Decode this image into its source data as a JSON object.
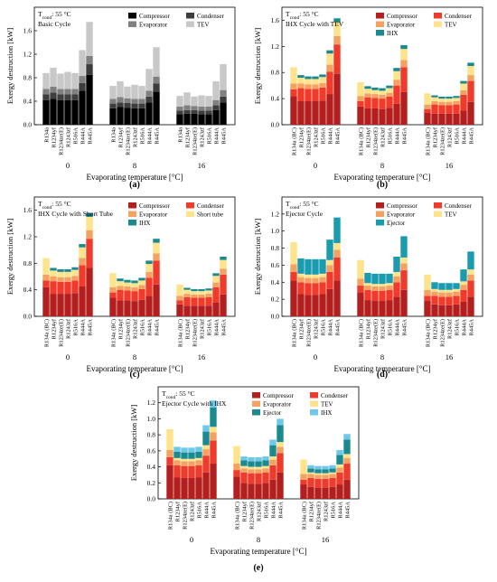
{
  "colors": {
    "compressor_basic": "#000000",
    "condenser_basic": "#3d3d3d",
    "evaporator_basic": "#808080",
    "tev_basic": "#c8c8c8",
    "compressor": "#b31f1f",
    "condenser": "#ef3b2c",
    "evaporator": "#f4a261",
    "expansion": "#fde38c",
    "ihx": "#1b8a8f",
    "ejector": "#1a9cb0",
    "ihx_light": "#6fc8ea"
  },
  "chart_data": [
    {
      "id": "a",
      "type": "bar",
      "stacked": true,
      "panel_label": "(a)",
      "title_main": "T",
      "title_sub": "cond",
      "title_rest": ": 55 °C",
      "subtitle": "Basic Cycle",
      "ylabel": "Exergy destruction [kW]",
      "xlabel": "Evaporating temperature [°C]",
      "ylim": [
        0,
        2.0
      ],
      "yticks": [
        "0.0",
        "0.4",
        "0.8",
        "1.2",
        "1.6"
      ],
      "groups": [
        "0",
        "8",
        "16"
      ],
      "categories": [
        "R134a",
        "R1234yf",
        "R1234ze(E)",
        "R1243zf",
        "R516A",
        "R444A",
        "R445A"
      ],
      "legend_cols": 2,
      "series": [
        {
          "name": "Compressor",
          "color_key": "compressor_basic",
          "values": [
            [
              0.42,
              0.44,
              0.42,
              0.42,
              0.42,
              0.58,
              0.85
            ],
            [
              0.28,
              0.3,
              0.29,
              0.28,
              0.28,
              0.38,
              0.56
            ],
            [
              0.18,
              0.19,
              0.19,
              0.18,
              0.18,
              0.25,
              0.38
            ]
          ]
        },
        {
          "name": "Condenser",
          "color_key": "condenser_basic",
          "values": [
            [
              0.1,
              0.11,
              0.1,
              0.1,
              0.1,
              0.13,
              0.18
            ],
            [
              0.08,
              0.08,
              0.08,
              0.08,
              0.08,
              0.1,
              0.14
            ],
            [
              0.06,
              0.06,
              0.06,
              0.06,
              0.06,
              0.08,
              0.1
            ]
          ]
        },
        {
          "name": "Evaporator",
          "color_key": "evaporator_basic",
          "values": [
            [
              0.09,
              0.1,
              0.09,
              0.09,
              0.09,
              0.12,
              0.14
            ],
            [
              0.08,
              0.09,
              0.08,
              0.08,
              0.08,
              0.1,
              0.12
            ],
            [
              0.07,
              0.08,
              0.07,
              0.07,
              0.07,
              0.09,
              0.11
            ]
          ]
        },
        {
          "name": "TEV",
          "color_key": "tev_basic",
          "values": [
            [
              0.27,
              0.32,
              0.26,
              0.29,
              0.27,
              0.44,
              0.58
            ],
            [
              0.22,
              0.27,
              0.2,
              0.24,
              0.22,
              0.37,
              0.5
            ],
            [
              0.18,
              0.22,
              0.16,
              0.19,
              0.18,
              0.32,
              0.44
            ]
          ]
        }
      ]
    },
    {
      "id": "b",
      "type": "bar",
      "stacked": true,
      "panel_label": "(b)",
      "title_main": "T",
      "title_sub": "cond",
      "title_rest": ": 55 °C",
      "subtitle": "IHX Cycle with TEV",
      "ylabel": "Exergy destruction [kW]",
      "xlabel": "Evaporating temperature [°C]",
      "ylim": [
        0,
        1.8
      ],
      "yticks": [
        "0.0",
        "0.4",
        "0.8",
        "1.2",
        "1.6"
      ],
      "groups": [
        "0",
        "8",
        "16"
      ],
      "categories": [
        "R134a (BC)",
        "R1234yf",
        "R1234ze(E)",
        "R1243zf",
        "R516A",
        "R444A",
        "R445A"
      ],
      "legend_cols": 2,
      "series": [
        {
          "name": "Compressor",
          "color_key": "compressor",
          "values": [
            [
              0.44,
              0.36,
              0.36,
              0.36,
              0.37,
              0.47,
              0.78
            ],
            [
              0.28,
              0.25,
              0.25,
              0.24,
              0.26,
              0.32,
              0.5
            ],
            [
              0.18,
              0.17,
              0.17,
              0.17,
              0.17,
              0.22,
              0.35
            ]
          ]
        },
        {
          "name": "Condenser",
          "color_key": "condenser",
          "values": [
            [
              0.1,
              0.2,
              0.19,
              0.19,
              0.2,
              0.34,
              0.45
            ],
            [
              0.08,
              0.17,
              0.16,
              0.16,
              0.17,
              0.28,
              0.38
            ],
            [
              0.06,
              0.14,
              0.13,
              0.13,
              0.14,
              0.24,
              0.32
            ]
          ]
        },
        {
          "name": "Evaporator",
          "color_key": "evaporator",
          "values": [
            [
              0.09,
              0.07,
              0.07,
              0.07,
              0.07,
              0.11,
              0.13
            ],
            [
              0.08,
              0.06,
              0.06,
              0.06,
              0.06,
              0.09,
              0.11
            ],
            [
              0.07,
              0.05,
              0.05,
              0.05,
              0.05,
              0.07,
              0.09
            ]
          ]
        },
        {
          "name": "TEV",
          "color_key": "expansion",
          "values": [
            [
              0.25,
              0.09,
              0.08,
              0.08,
              0.09,
              0.17,
              0.21
            ],
            [
              0.21,
              0.07,
              0.06,
              0.06,
              0.07,
              0.13,
              0.17
            ],
            [
              0.17,
              0.06,
              0.05,
              0.05,
              0.05,
              0.1,
              0.14
            ]
          ]
        },
        {
          "name": "IHX",
          "color_key": "ihx",
          "values": [
            [
              0.0,
              0.04,
              0.04,
              0.04,
              0.04,
              0.05,
              0.06
            ],
            [
              0.0,
              0.04,
              0.04,
              0.04,
              0.04,
              0.05,
              0.06
            ],
            [
              0.0,
              0.03,
              0.03,
              0.03,
              0.03,
              0.04,
              0.05
            ]
          ]
        }
      ]
    },
    {
      "id": "c",
      "type": "bar",
      "stacked": true,
      "panel_label": "(c)",
      "title_main": "T",
      "title_sub": "cond",
      "title_rest": ": 55 °C",
      "subtitle": "IHX Cycle with Short Tube",
      "ylabel": "Exergy destruction [kW]",
      "xlabel": "Evaporating temperature [°C]",
      "ylim": [
        0,
        1.8
      ],
      "yticks": [
        "0.0",
        "0.4",
        "0.8",
        "1.2",
        "1.6"
      ],
      "groups": [
        "0",
        "8",
        "16"
      ],
      "categories": [
        "R134a (BC)",
        "R1234yf",
        "R1234ze(E)",
        "R1243zf",
        "R516A",
        "R444A",
        "R445A"
      ],
      "legend_cols": 2,
      "series": [
        {
          "name": "Compressor",
          "color_key": "compressor",
          "values": [
            [
              0.44,
              0.34,
              0.34,
              0.34,
              0.35,
              0.45,
              0.73
            ],
            [
              0.28,
              0.24,
              0.24,
              0.23,
              0.25,
              0.31,
              0.48
            ],
            [
              0.18,
              0.16,
              0.16,
              0.16,
              0.16,
              0.21,
              0.33
            ]
          ]
        },
        {
          "name": "Condenser",
          "color_key": "condenser",
          "values": [
            [
              0.1,
              0.19,
              0.18,
              0.18,
              0.19,
              0.32,
              0.44
            ],
            [
              0.08,
              0.16,
              0.15,
              0.15,
              0.16,
              0.27,
              0.36
            ],
            [
              0.06,
              0.13,
              0.12,
              0.12,
              0.13,
              0.23,
              0.3
            ]
          ]
        },
        {
          "name": "Evaporator",
          "color_key": "evaporator",
          "values": [
            [
              0.09,
              0.07,
              0.07,
              0.07,
              0.07,
              0.11,
              0.13
            ],
            [
              0.08,
              0.06,
              0.06,
              0.06,
              0.06,
              0.09,
              0.11
            ],
            [
              0.07,
              0.05,
              0.05,
              0.05,
              0.05,
              0.07,
              0.09
            ]
          ]
        },
        {
          "name": "Short tube",
          "color_key": "expansion",
          "values": [
            [
              0.25,
              0.09,
              0.08,
              0.08,
              0.09,
              0.16,
              0.2
            ],
            [
              0.21,
              0.07,
              0.06,
              0.06,
              0.07,
              0.12,
              0.16
            ],
            [
              0.17,
              0.06,
              0.05,
              0.05,
              0.05,
              0.1,
              0.13
            ]
          ]
        },
        {
          "name": "IHX",
          "color_key": "ihx",
          "values": [
            [
              0.0,
              0.04,
              0.04,
              0.04,
              0.04,
              0.05,
              0.06
            ],
            [
              0.0,
              0.04,
              0.04,
              0.04,
              0.04,
              0.05,
              0.06
            ],
            [
              0.0,
              0.03,
              0.03,
              0.03,
              0.03,
              0.04,
              0.05
            ]
          ]
        }
      ]
    },
    {
      "id": "d",
      "type": "bar",
      "stacked": true,
      "panel_label": "(d)",
      "title_main": "T",
      "title_sub": "cond",
      "title_rest": ": 55 °C",
      "subtitle": "Ejector Cycle",
      "ylabel": "Exergy destruction [kW]",
      "xlabel": "Evaporating temperature [°C]",
      "ylim": [
        0,
        1.4
      ],
      "yticks": [
        "0.0",
        "0.2",
        "0.4",
        "0.6",
        "0.8",
        "1.0",
        "1.2"
      ],
      "groups": [
        "0",
        "8",
        "16"
      ],
      "categories": [
        "R134a (BC)",
        "R1234yf",
        "R1234ze(E)",
        "R1243zf",
        "R516A",
        "R444A",
        "R445A"
      ],
      "legend_cols": 2,
      "series": [
        {
          "name": "Compressor",
          "color_key": "compressor",
          "values": [
            [
              0.42,
              0.26,
              0.25,
              0.25,
              0.26,
              0.32,
              0.42
            ],
            [
              0.28,
              0.19,
              0.18,
              0.18,
              0.19,
              0.23,
              0.31
            ],
            [
              0.18,
              0.14,
              0.13,
              0.13,
              0.14,
              0.17,
              0.23
            ]
          ]
        },
        {
          "name": "Condenser",
          "color_key": "condenser",
          "values": [
            [
              0.1,
              0.14,
              0.14,
              0.14,
              0.14,
              0.2,
              0.27
            ],
            [
              0.08,
              0.12,
              0.12,
              0.12,
              0.12,
              0.17,
              0.23
            ],
            [
              0.06,
              0.1,
              0.1,
              0.1,
              0.1,
              0.14,
              0.19
            ]
          ]
        },
        {
          "name": "Evaporator",
          "color_key": "evaporator",
          "values": [
            [
              0.09,
              0.06,
              0.06,
              0.06,
              0.06,
              0.08,
              0.09
            ],
            [
              0.08,
              0.05,
              0.05,
              0.05,
              0.05,
              0.07,
              0.08
            ],
            [
              0.07,
              0.05,
              0.05,
              0.05,
              0.05,
              0.06,
              0.07
            ]
          ]
        },
        {
          "name": "TEV",
          "color_key": "expansion",
          "values": [
            [
              0.26,
              0.04,
              0.04,
              0.04,
              0.04,
              0.06,
              0.08
            ],
            [
              0.22,
              0.03,
              0.03,
              0.03,
              0.03,
              0.05,
              0.07
            ],
            [
              0.18,
              0.03,
              0.03,
              0.03,
              0.03,
              0.04,
              0.06
            ]
          ]
        },
        {
          "name": "Ejector",
          "color_key": "ejector",
          "values": [
            [
              0.0,
              0.18,
              0.18,
              0.18,
              0.17,
              0.24,
              0.3
            ],
            [
              0.0,
              0.12,
              0.12,
              0.12,
              0.11,
              0.18,
              0.25
            ],
            [
              0.0,
              0.08,
              0.08,
              0.08,
              0.07,
              0.14,
              0.21
            ]
          ]
        }
      ]
    },
    {
      "id": "e",
      "type": "bar",
      "stacked": true,
      "panel_label": "(e)",
      "title_main": "T",
      "title_sub": "cond",
      "title_rest": ": 55 °C",
      "subtitle": "Ejector Cycle with IHX",
      "ylabel": "Exergy destruction [kW]",
      "xlabel": "Evaporating temperature [°C]",
      "ylim": [
        0,
        1.4
      ],
      "yticks": [
        "0.0",
        "0.2",
        "0.4",
        "0.6",
        "0.8",
        "1.0",
        "1.2"
      ],
      "groups": [
        "0",
        "8",
        "16"
      ],
      "categories": [
        "R134a (BC)",
        "R1234yf",
        "R1234ze(E)",
        "R1243zf",
        "R516A",
        "R444A",
        "R445A"
      ],
      "legend_cols": 2,
      "series": [
        {
          "name": "Compressor",
          "color_key": "compressor",
          "values": [
            [
              0.42,
              0.27,
              0.26,
              0.26,
              0.27,
              0.33,
              0.44
            ],
            [
              0.28,
              0.2,
              0.19,
              0.19,
              0.2,
              0.24,
              0.33
            ],
            [
              0.18,
              0.15,
              0.14,
              0.14,
              0.15,
              0.18,
              0.24
            ]
          ]
        },
        {
          "name": "Condenser",
          "color_key": "condenser",
          "values": [
            [
              0.1,
              0.15,
              0.15,
              0.15,
              0.15,
              0.21,
              0.29
            ],
            [
              0.08,
              0.13,
              0.13,
              0.13,
              0.13,
              0.18,
              0.24
            ],
            [
              0.06,
              0.11,
              0.11,
              0.11,
              0.11,
              0.15,
              0.2
            ]
          ]
        },
        {
          "name": "Evaporator",
          "color_key": "evaporator",
          "values": [
            [
              0.09,
              0.06,
              0.06,
              0.06,
              0.06,
              0.08,
              0.1
            ],
            [
              0.08,
              0.05,
              0.05,
              0.05,
              0.05,
              0.07,
              0.08
            ],
            [
              0.07,
              0.05,
              0.05,
              0.05,
              0.05,
              0.06,
              0.07
            ]
          ]
        },
        {
          "name": "TEV",
          "color_key": "expansion",
          "values": [
            [
              0.26,
              0.03,
              0.03,
              0.03,
              0.03,
              0.05,
              0.07
            ],
            [
              0.22,
              0.03,
              0.03,
              0.03,
              0.03,
              0.04,
              0.06
            ],
            [
              0.18,
              0.02,
              0.02,
              0.02,
              0.02,
              0.04,
              0.05
            ]
          ]
        },
        {
          "name": "Ejector",
          "color_key": "ihx",
          "values": [
            [
              0.0,
              0.08,
              0.08,
              0.08,
              0.08,
              0.17,
              0.24
            ],
            [
              0.0,
              0.07,
              0.07,
              0.07,
              0.07,
              0.14,
              0.21
            ],
            [
              0.0,
              0.05,
              0.05,
              0.05,
              0.05,
              0.12,
              0.18
            ]
          ]
        },
        {
          "name": "IHX",
          "color_key": "ihx_light",
          "values": [
            [
              0.0,
              0.06,
              0.06,
              0.06,
              0.06,
              0.08,
              0.09
            ],
            [
              0.0,
              0.05,
              0.05,
              0.05,
              0.05,
              0.07,
              0.08
            ],
            [
              0.0,
              0.04,
              0.04,
              0.04,
              0.04,
              0.06,
              0.07
            ]
          ]
        }
      ]
    }
  ]
}
